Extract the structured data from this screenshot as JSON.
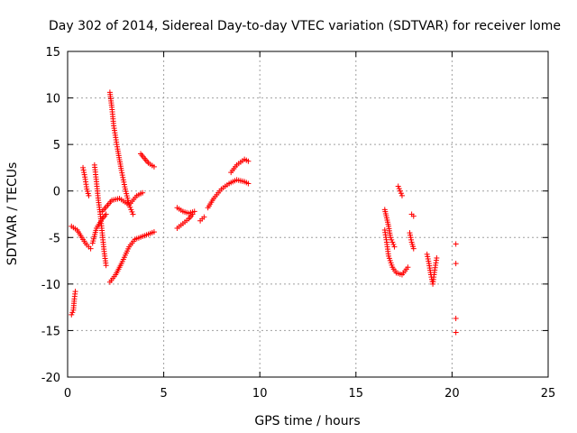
{
  "chart_data": {
    "type": "scatter",
    "title": "Day 302 of 2014, Sidereal Day-to-day VTEC variation (SDTVAR) for receiver lome",
    "xlabel": "GPS time / hours",
    "ylabel": "SDTVAR / TECUs",
    "xlim": [
      0,
      25
    ],
    "ylim": [
      -20,
      15
    ],
    "xticks": [
      "0",
      "5",
      "10",
      "15",
      "20",
      "25"
    ],
    "yticks": [
      "-20",
      "-15",
      "-10",
      "-5",
      "0",
      "5",
      "10",
      "15"
    ],
    "grid": true,
    "marker": "+",
    "color": "#ff0000",
    "series": [
      {
        "name": "SDTVAR",
        "segments": [
          [
            [
              0.2,
              -13.3
            ],
            [
              0.3,
              -12.8
            ],
            [
              0.35,
              -11.6
            ],
            [
              0.4,
              -10.8
            ]
          ],
          [
            [
              0.2,
              -3.8
            ],
            [
              0.5,
              -4.2
            ],
            [
              0.8,
              -5.2
            ],
            [
              1.0,
              -5.8
            ],
            [
              1.2,
              -6.2
            ]
          ],
          [
            [
              0.8,
              2.5
            ],
            [
              0.9,
              1.5
            ],
            [
              1.0,
              0.2
            ],
            [
              1.1,
              -0.5
            ]
          ],
          [
            [
              1.3,
              -5.6
            ],
            [
              1.5,
              -4.0
            ],
            [
              1.8,
              -3.0
            ],
            [
              2.0,
              -2.5
            ]
          ],
          [
            [
              1.4,
              2.8
            ],
            [
              1.5,
              1.0
            ],
            [
              1.6,
              -1.0
            ],
            [
              1.7,
              -2.5
            ],
            [
              1.8,
              -4.5
            ],
            [
              1.9,
              -6.5
            ],
            [
              2.0,
              -8.0
            ]
          ],
          [
            [
              2.2,
              10.6
            ],
            [
              2.3,
              9.0
            ],
            [
              2.4,
              7.0
            ],
            [
              2.6,
              4.5
            ],
            [
              2.8,
              2.2
            ],
            [
              3.0,
              0.2
            ],
            [
              3.2,
              -1.5
            ],
            [
              3.4,
              -2.5
            ]
          ],
          [
            [
              2.2,
              -9.8
            ],
            [
              2.5,
              -9.0
            ],
            [
              2.8,
              -7.8
            ],
            [
              3.2,
              -6.0
            ],
            [
              3.5,
              -5.2
            ],
            [
              4.0,
              -4.8
            ],
            [
              4.5,
              -4.4
            ]
          ],
          [
            [
              1.8,
              -2.2
            ],
            [
              2.3,
              -1.0
            ],
            [
              2.7,
              -0.8
            ],
            [
              3.2,
              -1.5
            ],
            [
              3.6,
              -0.5
            ],
            [
              3.9,
              -0.2
            ]
          ],
          [
            [
              3.8,
              4.0
            ],
            [
              4.0,
              3.5
            ],
            [
              4.2,
              3.0
            ],
            [
              4.5,
              2.6
            ]
          ],
          [
            [
              5.7,
              -4.0
            ],
            [
              6.0,
              -3.5
            ],
            [
              6.3,
              -3.0
            ],
            [
              6.5,
              -2.5
            ]
          ],
          [
            [
              5.7,
              -1.8
            ],
            [
              6.0,
              -2.2
            ],
            [
              6.3,
              -2.4
            ],
            [
              6.6,
              -2.2
            ]
          ],
          [
            [
              6.9,
              -3.2
            ],
            [
              7.1,
              -2.8
            ]
          ],
          [
            [
              7.3,
              -1.8
            ],
            [
              7.6,
              -0.8
            ],
            [
              8.0,
              0.2
            ],
            [
              8.4,
              0.8
            ],
            [
              8.8,
              1.2
            ],
            [
              9.2,
              1.0
            ],
            [
              9.4,
              0.8
            ]
          ],
          [
            [
              8.5,
              2.0
            ],
            [
              8.8,
              2.8
            ],
            [
              9.2,
              3.4
            ],
            [
              9.4,
              3.2
            ]
          ],
          [
            [
              16.5,
              -2.0
            ],
            [
              16.7,
              -3.8
            ],
            [
              16.8,
              -5.0
            ],
            [
              17.0,
              -6.0
            ]
          ],
          [
            [
              16.5,
              -4.2
            ],
            [
              16.6,
              -5.5
            ],
            [
              16.7,
              -7.0
            ],
            [
              16.9,
              -8.2
            ],
            [
              17.1,
              -8.8
            ],
            [
              17.4,
              -9.0
            ],
            [
              17.7,
              -8.2
            ]
          ],
          [
            [
              17.2,
              0.5
            ],
            [
              17.3,
              0.0
            ],
            [
              17.4,
              -0.5
            ]
          ],
          [
            [
              17.9,
              -2.5
            ],
            [
              18.0,
              -2.7
            ]
          ],
          [
            [
              17.8,
              -4.5
            ],
            [
              17.9,
              -5.5
            ],
            [
              18.0,
              -6.2
            ]
          ],
          [
            [
              18.7,
              -6.8
            ],
            [
              18.8,
              -7.8
            ],
            [
              18.9,
              -9.0
            ],
            [
              19.0,
              -10.0
            ],
            [
              19.1,
              -8.5
            ],
            [
              19.2,
              -7.2
            ]
          ],
          [
            [
              20.2,
              -5.7
            ]
          ],
          [
            [
              20.2,
              -7.8
            ]
          ],
          [
            [
              20.2,
              -13.7
            ]
          ],
          [
            [
              20.2,
              -15.2
            ]
          ]
        ]
      }
    ]
  }
}
